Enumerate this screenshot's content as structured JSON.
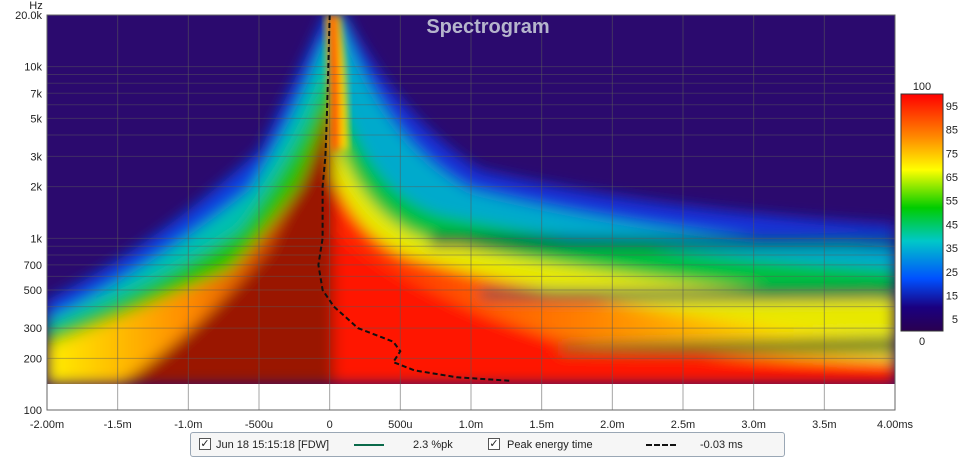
{
  "chart_data": {
    "type": "heatmap",
    "title": "Spectrogram",
    "xlabel": "",
    "ylabel": "",
    "x_unit": "ms",
    "y_unit": "Hz",
    "x_range_ms": [
      -2.0,
      4.0
    ],
    "y_range_hz": [
      100,
      20000
    ],
    "y_scale": "log",
    "x_tick_values_ms": [
      -2.0,
      -1.5,
      -1.0,
      -0.5,
      0,
      0.5,
      1.0,
      1.5,
      2.0,
      2.5,
      3.0,
      3.5,
      4.0
    ],
    "x_tick_labels": [
      "-2.00m",
      "-1.5m",
      "-1.0m",
      "-500u",
      "0",
      "500u",
      "1.0m",
      "1.5m",
      "2.0m",
      "2.5m",
      "3.0m",
      "3.5m",
      "4.00ms"
    ],
    "y_tick_values_hz": [
      100,
      200,
      300,
      500,
      700,
      1000,
      2000,
      3000,
      5000,
      7000,
      10000,
      20000
    ],
    "y_tick_labels": [
      "100",
      "200",
      "300",
      "500",
      "700",
      "1k",
      "2k",
      "3k",
      "5k",
      "7k",
      "10k",
      "20.0k"
    ],
    "y_unit_label": "Hz",
    "grid": true,
    "colorbar": {
      "max_label": "100",
      "min_label": "0",
      "tick_values": [
        95,
        85,
        75,
        65,
        55,
        45,
        35,
        25,
        15,
        5
      ],
      "tick_labels": [
        "95",
        "85",
        "75",
        "65",
        "55",
        "45",
        "35",
        "25",
        "15",
        "5"
      ],
      "colors": [
        "#fff0d0",
        "#ff0000",
        "#ff8800",
        "#ffff00",
        "#00cc00",
        "#00c8c8",
        "#0050ff",
        "#1a0080",
        "#2a0050"
      ]
    },
    "peak_energy_time_ms": [
      [
        0.0,
        20000
      ],
      [
        -0.01,
        10000
      ],
      [
        -0.02,
        5000
      ],
      [
        -0.03,
        3000
      ],
      [
        -0.05,
        2000
      ],
      [
        -0.05,
        1000
      ],
      [
        -0.08,
        700
      ],
      [
        -0.05,
        500
      ],
      [
        0.03,
        400
      ],
      [
        0.2,
        300
      ],
      [
        0.45,
        250
      ],
      [
        0.5,
        220
      ],
      [
        0.45,
        190
      ],
      [
        0.6,
        170
      ],
      [
        0.9,
        155
      ],
      [
        1.28,
        148
      ]
    ],
    "series": [
      {
        "name": "Jun 18 15:15:18 [FDW]",
        "value_label": "2.3 %pk",
        "color": "#0a6a4a"
      },
      {
        "name": "Peak energy time",
        "value_label": "-0.03 ms",
        "color": "#111111",
        "dashed": true
      }
    ]
  },
  "legend": {
    "item1_check": "✓",
    "item1_label": "Jun 18 15:15:18 [FDW]",
    "item1_value": "2.3 %pk",
    "item2_check": "✓",
    "item2_label": "Peak energy time",
    "item2_value": "-0.03 ms"
  }
}
